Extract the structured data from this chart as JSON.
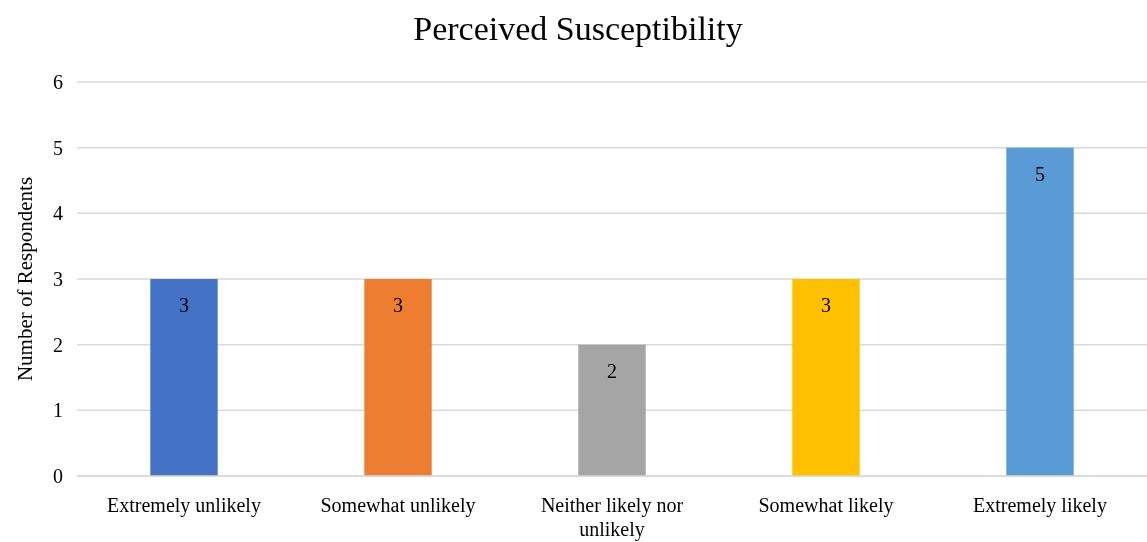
{
  "chart_data": {
    "type": "bar",
    "title": "Perceived Susceptibility",
    "ylabel": "Number of Respondents",
    "categories": [
      "Extremely unlikely",
      "Somewhat unlikely",
      "Neither likely nor unlikely",
      "Somewhat likely",
      "Extremely likely"
    ],
    "values": [
      3,
      3,
      2,
      3,
      5
    ],
    "colors": [
      "#4472c4",
      "#ed7d31",
      "#a5a5a5",
      "#ffc000",
      "#5b9bd5"
    ],
    "ylim": [
      0,
      6
    ],
    "yticks": [
      0,
      1,
      2,
      3,
      4,
      5,
      6
    ],
    "grid": "y",
    "data_labels": true
  }
}
